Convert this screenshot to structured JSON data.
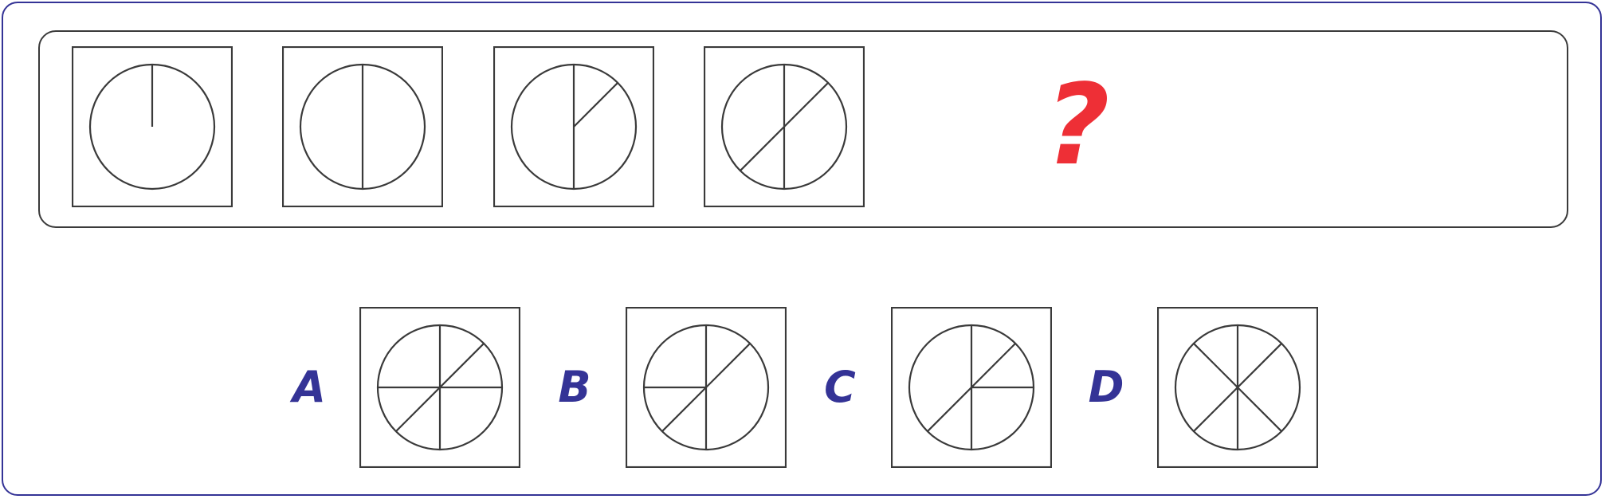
{
  "puzzle": {
    "sequence": [
      {
        "figure": "circle-with-radius-from-top"
      },
      {
        "figure": "circle-with-vertical-diameter"
      },
      {
        "figure": "circle-with-vertical-diameter-and-radius-to-upper-right"
      },
      {
        "figure": "circle-with-vertical-diameter-and-diagonal-diameter"
      }
    ],
    "missing_marker": "?",
    "options": [
      {
        "label": "A",
        "figure": "vertical-horizontal-and-diagonal-diameters"
      },
      {
        "label": "B",
        "figure": "vertical-diagonal-diameters-and-left-radius"
      },
      {
        "label": "C",
        "figure": "vertical-diagonal-diameters-and-right-radius"
      },
      {
        "label": "D",
        "figure": "vertical-and-two-diagonal-diameters"
      }
    ]
  },
  "colors": {
    "frame": "#343396",
    "line": "#3a3a3a",
    "question_mark": "#ee2f36",
    "option_label": "#343396"
  }
}
